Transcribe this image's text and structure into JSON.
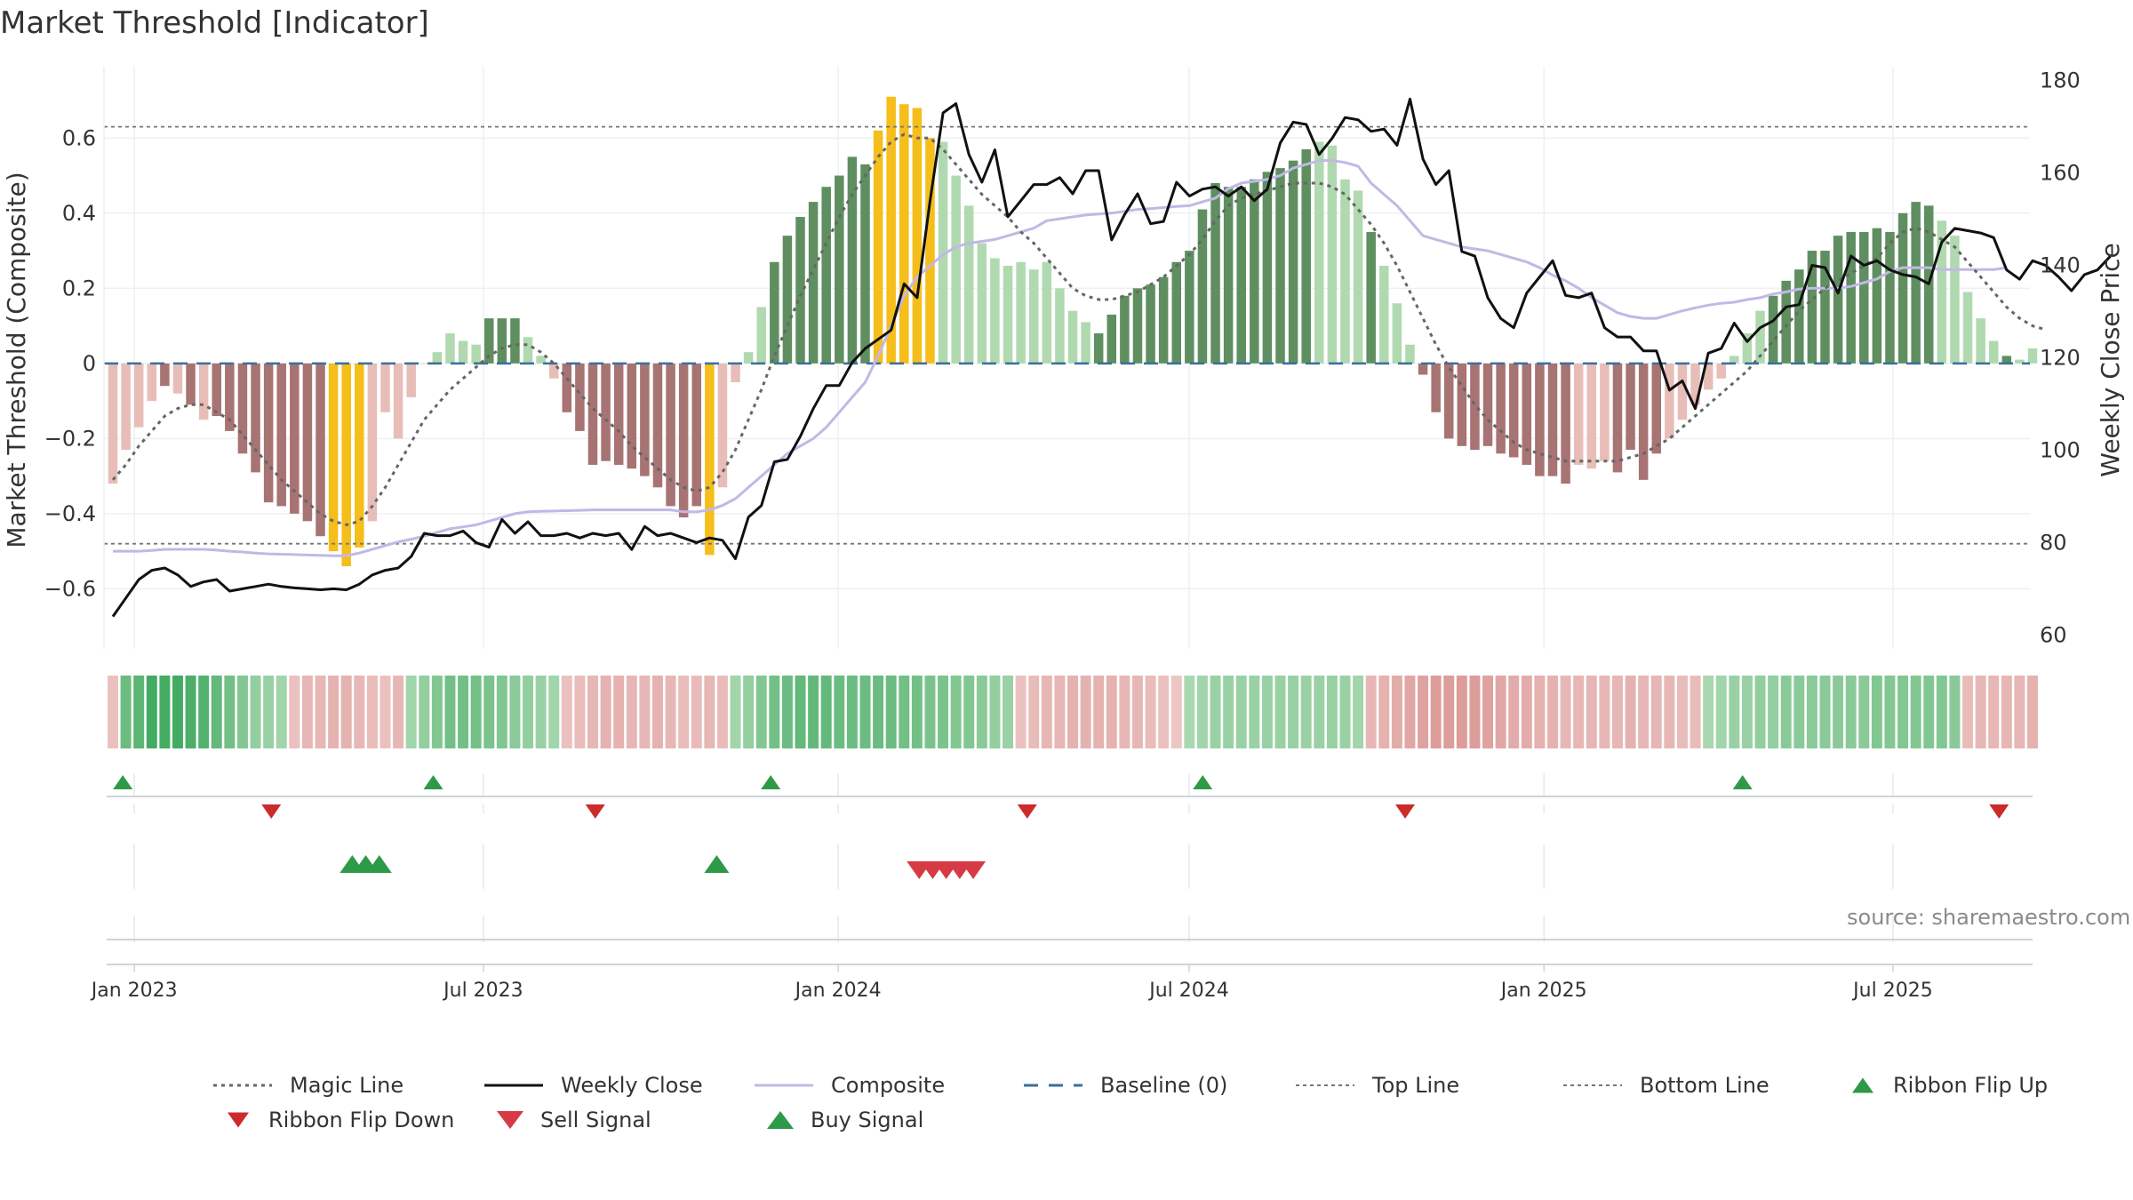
{
  "title": "Market Threshold [Indicator]",
  "source": "source: sharemaestro.com",
  "colors": {
    "composite": "#c2b8e6",
    "weekly_close": "#111111",
    "magic_line": "#666666",
    "baseline": "#3a6f9c",
    "top_bottom": "#777777",
    "gold": "#f5be1a",
    "green_dark": "#5f8f60",
    "green_light": "#b1d9b0",
    "red_dark": "#a87373",
    "red_light": "#e8bdb8",
    "buy": "#2e9a48",
    "sell": "#d63a45",
    "flip_down": "#cc2b2b"
  },
  "chart_data": {
    "type": "bar",
    "title": "Market Threshold [Indicator]",
    "ylabel": "Market Threshold (Composite)",
    "y2label": "Weekly Close Price",
    "ylim": [
      -0.76,
      0.79
    ],
    "y2lim": [
      57,
      183
    ],
    "yticks": [
      "0.6",
      "0.4",
      "0.2",
      "0",
      "−0.2",
      "−0.4",
      "−0.6"
    ],
    "ytick_values": [
      0.6,
      0.4,
      0.2,
      0,
      -0.2,
      -0.4,
      -0.6
    ],
    "y2ticks": [
      "180",
      "160",
      "140",
      "120",
      "100",
      "80",
      "60"
    ],
    "y2tick_values": [
      180,
      160,
      140,
      120,
      100,
      80,
      60
    ],
    "xlabels": [
      "Jan 2023",
      "Jul 2023",
      "Jan 2024",
      "Jul 2024",
      "Jan 2025",
      "Jul 2025"
    ],
    "x_start": "2022-12-19",
    "xlabel_dates": [
      "2023-01-01",
      "2023-07-01",
      "2024-01-01",
      "2024-07-01",
      "2025-01-01",
      "2025-07-01"
    ],
    "x_end": "2025-09-10",
    "grid": true,
    "legend_position": "bottom",
    "top_line": 0.63,
    "bottom_line": -0.48,
    "baseline": 0,
    "histogram": [
      -0.32,
      -0.23,
      -0.17,
      -0.1,
      -0.06,
      -0.08,
      -0.11,
      -0.15,
      -0.14,
      -0.18,
      -0.24,
      -0.29,
      -0.37,
      -0.38,
      -0.4,
      -0.42,
      -0.46,
      -0.5,
      -0.54,
      -0.49,
      -0.42,
      -0.13,
      -0.2,
      -0.09,
      0,
      0.03,
      0.08,
      0.06,
      0.05,
      0.12,
      0.12,
      0.12,
      0.07,
      0.02,
      -0.04,
      -0.13,
      -0.18,
      -0.27,
      -0.26,
      -0.27,
      -0.28,
      -0.3,
      -0.33,
      -0.38,
      -0.41,
      -0.38,
      -0.51,
      -0.33,
      -0.05,
      0.03,
      0.15,
      0.27,
      0.34,
      0.39,
      0.43,
      0.47,
      0.5,
      0.55,
      0.53,
      0.62,
      0.71,
      0.69,
      0.68,
      0.6,
      0.59,
      0.5,
      0.42,
      0.32,
      0.28,
      0.26,
      0.27,
      0.25,
      0.27,
      0.2,
      0.14,
      0.11,
      0.08,
      0.13,
      0.18,
      0.2,
      0.21,
      0.23,
      0.27,
      0.3,
      0.41,
      0.48,
      0.47,
      0.47,
      0.49,
      0.51,
      0.52,
      0.54,
      0.57,
      0.59,
      0.58,
      0.49,
      0.46,
      0.35,
      0.26,
      0.16,
      0.05,
      -0.03,
      -0.13,
      -0.2,
      -0.22,
      -0.23,
      -0.22,
      -0.24,
      -0.25,
      -0.27,
      -0.3,
      -0.3,
      -0.32,
      -0.27,
      -0.28,
      -0.26,
      -0.29,
      -0.23,
      -0.31,
      -0.24,
      -0.2,
      -0.15,
      -0.11,
      -0.07,
      -0.04,
      0.02,
      0.08,
      0.14,
      0.18,
      0.22,
      0.25,
      0.3,
      0.3,
      0.34,
      0.35,
      0.35,
      0.36,
      0.35,
      0.4,
      0.43,
      0.42,
      0.38,
      0.34,
      0.19,
      0.12,
      0.06,
      0.02,
      0.01,
      0.04
    ],
    "histogram_gold_indices": [
      17,
      18,
      19,
      46,
      59,
      60,
      61,
      62,
      63
    ],
    "histogram_dark_indices": [
      4,
      6,
      8,
      9,
      10,
      11,
      12,
      13,
      14,
      15,
      16,
      29,
      30,
      31,
      35,
      36,
      37,
      38,
      39,
      40,
      41,
      42,
      43,
      44,
      45,
      51,
      52,
      53,
      54,
      55,
      56,
      57,
      58,
      76,
      77,
      78,
      79,
      80,
      81,
      82,
      83,
      84,
      85,
      86,
      87,
      88,
      89,
      90,
      91,
      92,
      97,
      101,
      102,
      103,
      104,
      105,
      106,
      107,
      108,
      109,
      110,
      111,
      112,
      116,
      117,
      118,
      119,
      128,
      129,
      130,
      131,
      132,
      133,
      134,
      135,
      136,
      137,
      138,
      139,
      140,
      146
    ],
    "series": [
      {
        "name": "Weekly Close",
        "axis": "right",
        "values": [
          64,
          68,
          72,
          74,
          74.5,
          73,
          70.5,
          71.5,
          72,
          69.5,
          70,
          70.5,
          71,
          70.5,
          70.2,
          70,
          69.8,
          70,
          69.8,
          71,
          73,
          74,
          74.5,
          77,
          82,
          81.5,
          81.5,
          82.5,
          80,
          79,
          85,
          82,
          84.5,
          81.5,
          81.5,
          82,
          81,
          82,
          81.5,
          82,
          78.5,
          83.5,
          81.5,
          82,
          81,
          80,
          81,
          80.5,
          76.5,
          85.5,
          88,
          97.5,
          98,
          103,
          109,
          114,
          114,
          119,
          122,
          124,
          126,
          136,
          133,
          154,
          173,
          175,
          164,
          158,
          165,
          150.5,
          154,
          157.5,
          157.5,
          159,
          155.5,
          160.5,
          160.5,
          145.5,
          151,
          155.5,
          149,
          149.5,
          158,
          155,
          156.5,
          157,
          155,
          157,
          154,
          156.5,
          166.5,
          171,
          170.5,
          164,
          167.5,
          172,
          171.5,
          169,
          169.5,
          166,
          176,
          163,
          157.5,
          160.5,
          143,
          142,
          133,
          128.5,
          126.5,
          134,
          137.5,
          141,
          133.5,
          133,
          134,
          126.5,
          124.5,
          124.5,
          121.5,
          121.5,
          113,
          115,
          109,
          121,
          122,
          127.5,
          123.5,
          126.5,
          128,
          131,
          131.5,
          140,
          139.5,
          134,
          142,
          140,
          141,
          139,
          138,
          137.5,
          136,
          145,
          148,
          147.5,
          147,
          146,
          139,
          137,
          141,
          140,
          137.5,
          134.5,
          138,
          139,
          142
        ]
      },
      {
        "name": "Composite",
        "axis": "left",
        "values": [
          -0.5,
          -0.5,
          -0.5,
          -0.498,
          -0.495,
          -0.495,
          -0.495,
          -0.495,
          -0.497,
          -0.5,
          -0.502,
          -0.505,
          -0.507,
          -0.508,
          -0.509,
          -0.51,
          -0.511,
          -0.512,
          -0.512,
          -0.505,
          -0.495,
          -0.485,
          -0.475,
          -0.468,
          -0.46,
          -0.45,
          -0.44,
          -0.435,
          -0.43,
          -0.42,
          -0.41,
          -0.4,
          -0.395,
          -0.394,
          -0.393,
          -0.392,
          -0.391,
          -0.39,
          -0.39,
          -0.39,
          -0.39,
          -0.39,
          -0.39,
          -0.39,
          -0.395,
          -0.395,
          -0.39,
          -0.378,
          -0.36,
          -0.33,
          -0.3,
          -0.27,
          -0.24,
          -0.22,
          -0.2,
          -0.17,
          -0.13,
          -0.09,
          -0.05,
          0.02,
          0.1,
          0.18,
          0.23,
          0.26,
          0.29,
          0.31,
          0.32,
          0.325,
          0.33,
          0.34,
          0.35,
          0.36,
          0.38,
          0.385,
          0.39,
          0.395,
          0.398,
          0.4,
          0.405,
          0.41,
          0.412,
          0.415,
          0.418,
          0.42,
          0.43,
          0.44,
          0.465,
          0.48,
          0.485,
          0.49,
          0.5,
          0.52,
          0.53,
          0.54,
          0.54,
          0.535,
          0.525,
          0.48,
          0.45,
          0.42,
          0.38,
          0.34,
          0.33,
          0.32,
          0.31,
          0.305,
          0.3,
          0.29,
          0.28,
          0.27,
          0.255,
          0.235,
          0.22,
          0.2,
          0.175,
          0.155,
          0.135,
          0.125,
          0.12,
          0.12,
          0.13,
          0.14,
          0.148,
          0.155,
          0.16,
          0.163,
          0.17,
          0.175,
          0.185,
          0.19,
          0.198,
          0.2,
          0.2,
          0.2,
          0.205,
          0.215,
          0.225,
          0.245,
          0.255,
          0.255,
          0.255,
          0.25,
          0.25,
          0.25,
          0.25,
          0.25,
          0.255
        ]
      },
      {
        "name": "Magic Line",
        "axis": "left",
        "values": [
          -0.31,
          -0.27,
          -0.22,
          -0.18,
          -0.14,
          -0.12,
          -0.11,
          -0.11,
          -0.13,
          -0.15,
          -0.19,
          -0.23,
          -0.27,
          -0.31,
          -0.34,
          -0.37,
          -0.4,
          -0.42,
          -0.43,
          -0.42,
          -0.38,
          -0.33,
          -0.27,
          -0.21,
          -0.15,
          -0.11,
          -0.07,
          -0.04,
          -0.01,
          0.02,
          0.04,
          0.05,
          0.05,
          0.03,
          0,
          -0.04,
          -0.08,
          -0.12,
          -0.15,
          -0.18,
          -0.22,
          -0.25,
          -0.28,
          -0.31,
          -0.33,
          -0.34,
          -0.33,
          -0.29,
          -0.23,
          -0.15,
          -0.07,
          0.02,
          0.1,
          0.18,
          0.25,
          0.32,
          0.39,
          0.45,
          0.5,
          0.55,
          0.59,
          0.61,
          0.6,
          0.6,
          0.57,
          0.53,
          0.49,
          0.45,
          0.42,
          0.39,
          0.35,
          0.32,
          0.28,
          0.24,
          0.2,
          0.18,
          0.17,
          0.17,
          0.18,
          0.19,
          0.21,
          0.23,
          0.26,
          0.29,
          0.33,
          0.38,
          0.42,
          0.44,
          0.45,
          0.46,
          0.47,
          0.48,
          0.48,
          0.48,
          0.47,
          0.45,
          0.41,
          0.37,
          0.32,
          0.26,
          0.19,
          0.12,
          0.05,
          -0.01,
          -0.06,
          -0.11,
          -0.15,
          -0.18,
          -0.21,
          -0.23,
          -0.24,
          -0.25,
          -0.26,
          -0.26,
          -0.26,
          -0.26,
          -0.26,
          -0.25,
          -0.24,
          -0.22,
          -0.2,
          -0.17,
          -0.14,
          -0.11,
          -0.08,
          -0.05,
          -0.02,
          0.02,
          0.06,
          0.1,
          0.14,
          0.17,
          0.2,
          0.22,
          0.24,
          0.26,
          0.28,
          0.32,
          0.35,
          0.36,
          0.35,
          0.33,
          0.31,
          0.27,
          0.23,
          0.19,
          0.15,
          0.12,
          0.1,
          0.09
        ]
      },
      {
        "name": "Baseline (0)",
        "axis": "left",
        "values": [
          0
        ]
      },
      {
        "name": "Top Line",
        "axis": "left",
        "values": [
          0.63
        ]
      },
      {
        "name": "Bottom Line",
        "axis": "left",
        "values": [
          -0.48
        ]
      }
    ],
    "ribbon": [
      -0.2,
      0.6,
      0.7,
      0.85,
      0.85,
      0.85,
      0.8,
      0.75,
      0.65,
      0.55,
      0.45,
      0.35,
      0.3,
      0.25,
      -0.2,
      -0.3,
      -0.3,
      -0.35,
      -0.35,
      -0.3,
      -0.25,
      -0.2,
      -0.3,
      0.25,
      0.35,
      0.45,
      0.55,
      0.55,
      0.55,
      0.5,
      0.45,
      0.4,
      0.35,
      0.3,
      0.25,
      -0.2,
      -0.25,
      -0.3,
      -0.35,
      -0.35,
      -0.3,
      -0.3,
      -0.35,
      -0.3,
      -0.25,
      -0.25,
      -0.3,
      -0.25,
      0.25,
      0.35,
      0.45,
      0.55,
      0.6,
      0.65,
      0.65,
      0.65,
      0.6,
      0.6,
      0.6,
      0.6,
      0.6,
      0.55,
      0.55,
      0.5,
      0.5,
      0.45,
      0.45,
      0.4,
      0.35,
      0.3,
      -0.2,
      -0.25,
      -0.3,
      -0.3,
      -0.35,
      -0.35,
      -0.35,
      -0.35,
      -0.3,
      -0.3,
      -0.25,
      -0.2,
      -0.15,
      0.2,
      0.25,
      0.3,
      0.3,
      0.3,
      0.3,
      0.3,
      0.3,
      0.3,
      0.3,
      0.3,
      0.3,
      0.3,
      0.25,
      -0.3,
      -0.35,
      -0.4,
      -0.45,
      -0.5,
      -0.55,
      -0.55,
      -0.55,
      -0.55,
      -0.5,
      -0.45,
      -0.4,
      -0.4,
      -0.35,
      -0.35,
      -0.3,
      -0.3,
      -0.3,
      -0.3,
      -0.3,
      -0.35,
      -0.3,
      -0.3,
      -0.3,
      -0.25,
      -0.25,
      0.2,
      0.25,
      0.3,
      0.3,
      0.35,
      0.35,
      0.4,
      0.4,
      0.4,
      0.4,
      0.4,
      0.4,
      0.4,
      0.45,
      0.45,
      0.45,
      0.45,
      0.45,
      0.45,
      0.4,
      -0.25,
      -0.3,
      -0.3,
      -0.3,
      -0.3,
      -0.35
    ],
    "ribbon_flip_up_dates": [
      "2022-12-26",
      "2023-06-05",
      "2023-11-27",
      "2024-07-08",
      "2025-04-14"
    ],
    "ribbon_flip_down_dates": [
      "2023-03-13",
      "2023-08-28",
      "2024-04-08",
      "2024-10-21",
      "2025-08-25"
    ],
    "buy_signal_dates": [
      "2023-04-24",
      "2023-05-01",
      "2023-05-08",
      "2023-10-30"
    ],
    "sell_signal_dates": [
      "2024-02-12",
      "2024-02-19",
      "2024-02-26",
      "2024-03-04",
      "2024-03-11"
    ]
  },
  "legend": [
    {
      "label": "Magic Line",
      "kind": "dotted",
      "color": "#666666"
    },
    {
      "label": "Weekly Close",
      "kind": "solid",
      "color": "#111111"
    },
    {
      "label": "Composite",
      "kind": "solid-light",
      "color": "#c2b8e6"
    },
    {
      "label": "Baseline (0)",
      "kind": "dashed",
      "color": "#3a6f9c"
    },
    {
      "label": "Top Line",
      "kind": "dotted-thin",
      "color": "#777777"
    },
    {
      "label": "Bottom Line",
      "kind": "dotted-thin",
      "color": "#777777"
    },
    {
      "label": "Ribbon Flip Up",
      "kind": "tri-up-small",
      "color": "#2e9a48"
    },
    {
      "label": "Ribbon Flip Down",
      "kind": "tri-down-small",
      "color": "#cc2b2b"
    },
    {
      "label": "Sell Signal",
      "kind": "tri-down",
      "color": "#d63a45"
    },
    {
      "label": "Buy Signal",
      "kind": "tri-up",
      "color": "#2e9a48"
    }
  ]
}
